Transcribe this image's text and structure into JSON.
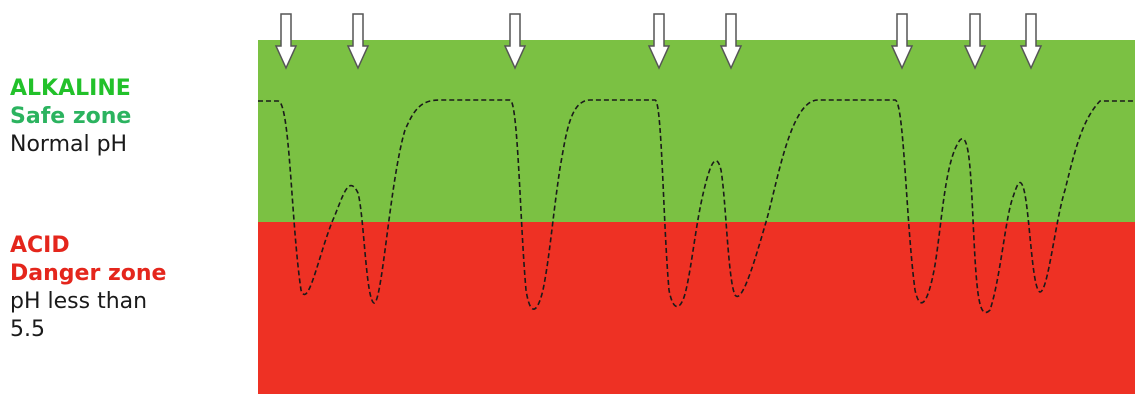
{
  "legend": {
    "alkaline": {
      "heading": "ALKALINE",
      "subheading": "Safe zone",
      "description": "Normal pH",
      "heading_color": "#22c12a",
      "subheading_color": "#2bb35f"
    },
    "acid": {
      "heading": "ACID",
      "subheading": "Danger zone",
      "description_line1": "pH less than",
      "description_line2": "5.5",
      "color": "#e4261c"
    }
  },
  "zones": {
    "safe_color": "#7bc143",
    "danger_color": "#ee3124"
  },
  "intake_events": {
    "count": 8,
    "icon": "down-arrow-icon"
  }
}
